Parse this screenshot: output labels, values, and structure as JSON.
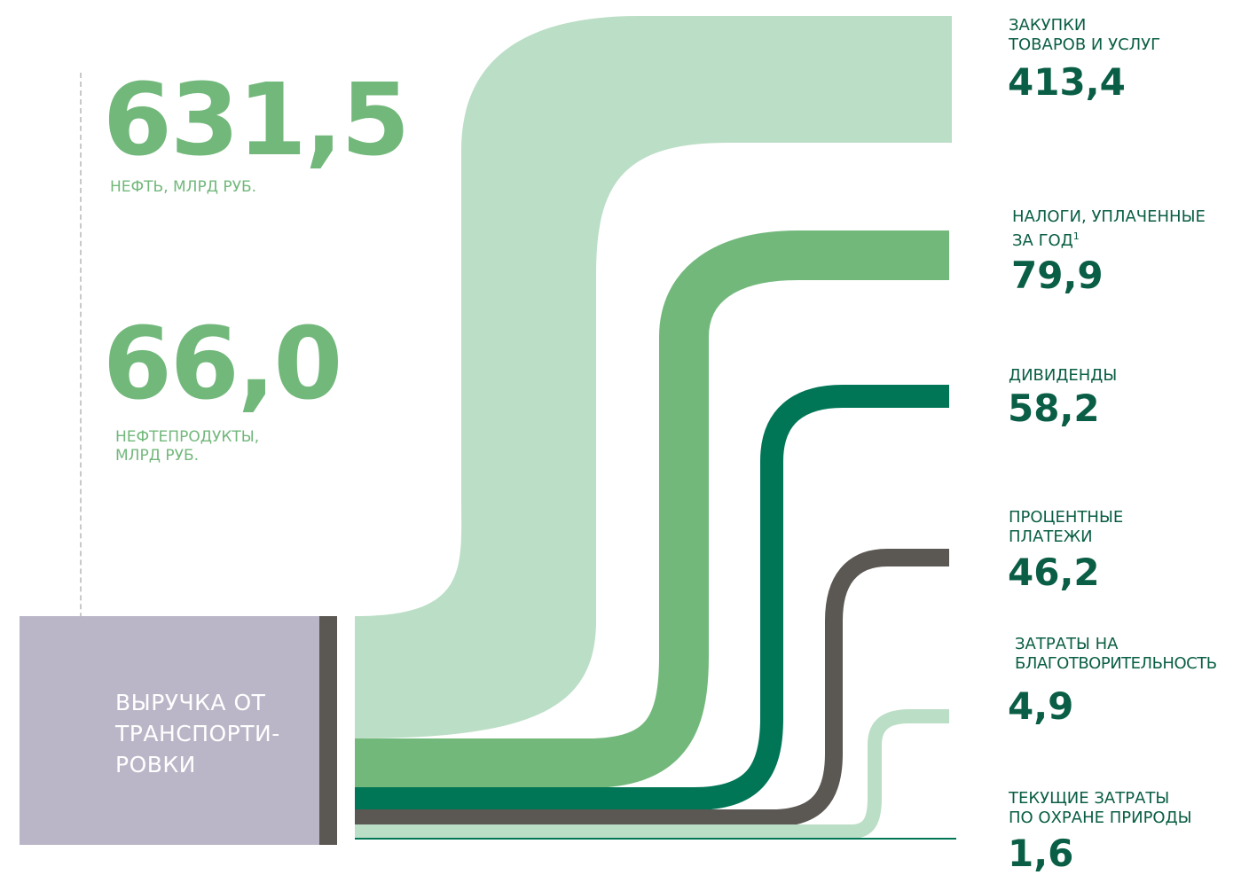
{
  "colors": {
    "light_green": "#bbdec6",
    "mid_green": "#72b87b",
    "dark_green": "#007656",
    "dark_grey": "#5b5753",
    "lavender": "#bbb6c7",
    "text_green": "#0a5e45"
  },
  "inputs": [
    {
      "value": "631,5",
      "caption_lines": [
        "НЕФТЬ, МЛРД РУБ."
      ]
    },
    {
      "value": "66,0",
      "caption_lines": [
        "НЕФТЕПРОДУКТЫ,",
        "МЛРД РУБ."
      ]
    }
  ],
  "revenue": {
    "label_lines": [
      "ВЫРУЧКА ОТ",
      "ТРАНСПОРТИ-",
      "РОВКИ"
    ]
  },
  "outputs": [
    {
      "label_lines": [
        "ЗАКУПКИ",
        "ТОВАРОВ И УСЛУГ"
      ],
      "value": "413,4",
      "amount": 413.4
    },
    {
      "label_lines": [
        "НАЛОГИ, УПЛАЧЕННЫЕ",
        "ЗА ГОД"
      ],
      "footnote": "1",
      "value": "79,9",
      "amount": 79.9
    },
    {
      "label_lines": [
        "ДИВИДЕНДЫ"
      ],
      "value": "58,2",
      "amount": 58.2
    },
    {
      "label_lines": [
        "ПРОЦЕНТНЫЕ",
        "ПЛАТЕЖИ"
      ],
      "value": "46,2",
      "amount": 46.2
    },
    {
      "label_lines": [
        "ЗАТРАТЫ НА",
        "БЛАГОТВОРИТЕЛЬНОСТЬ"
      ],
      "value": "4,9",
      "amount": 4.9
    },
    {
      "label_lines": [
        "ТЕКУЩИЕ ЗАТРАТЫ",
        "ПО ОХРАНЕ ПРИРОДЫ"
      ],
      "value": "1,6",
      "amount": 1.6
    }
  ]
}
